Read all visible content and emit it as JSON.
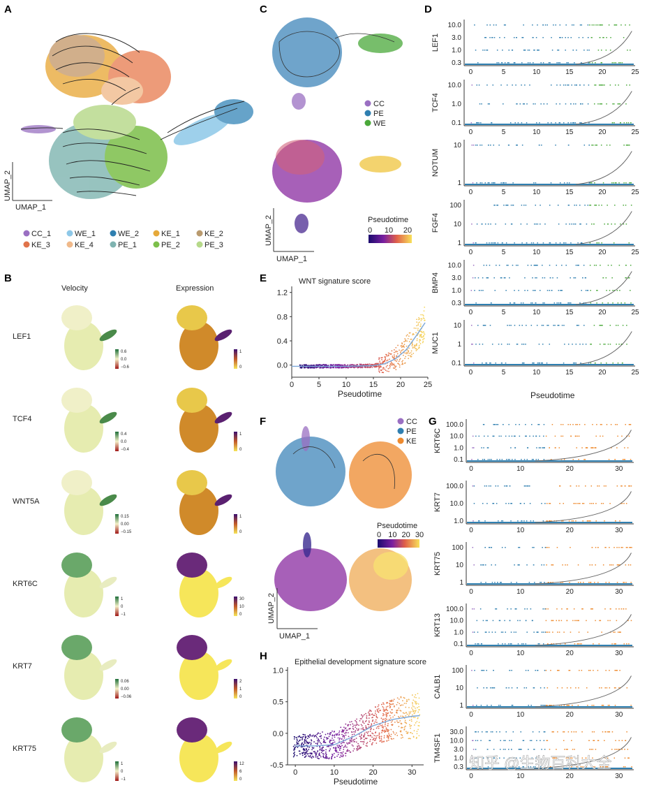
{
  "panels": {
    "A": {
      "letter": "A",
      "xlabel": "UMAP_1",
      "ylabel": "UMAP_2",
      "legend": [
        {
          "label": "CC_1",
          "color": "#9a6fc2"
        },
        {
          "label": "WE_1",
          "color": "#8ec8e8"
        },
        {
          "label": "WE_2",
          "color": "#2f7fb0"
        },
        {
          "label": "KE_1",
          "color": "#e6a93a"
        },
        {
          "label": "KE_2",
          "color": "#b99a6e"
        },
        {
          "label": "KE_3",
          "color": "#e0734a"
        },
        {
          "label": "KE_4",
          "color": "#f0b98a"
        },
        {
          "label": "PE_1",
          "color": "#7fb3b0"
        },
        {
          "label": "PE_2",
          "color": "#7cbf4a"
        },
        {
          "label": "PE_3",
          "color": "#b6d98a"
        }
      ]
    },
    "B": {
      "letter": "B",
      "col1": "Velocity",
      "col2": "Expression",
      "genes": [
        {
          "name": "LEF1",
          "vel": [
            "0.6",
            "0.0",
            "−0.6"
          ],
          "exp": [
            "1",
            "0"
          ]
        },
        {
          "name": "TCF4",
          "vel": [
            "0.4",
            "0.0",
            "−0.4"
          ],
          "exp": [
            "1",
            "0"
          ]
        },
        {
          "name": "WNT5A",
          "vel": [
            "0.15",
            "0.00",
            "−0.15"
          ],
          "exp": [
            "1",
            "0"
          ]
        },
        {
          "name": "KRT6C",
          "vel": [
            "1",
            "0",
            "−1"
          ],
          "exp": [
            "30",
            "10",
            "0"
          ]
        },
        {
          "name": "KRT7",
          "vel": [
            "0.06",
            "0.00",
            "−0.06"
          ],
          "exp": [
            "2",
            "1",
            "0"
          ]
        },
        {
          "name": "KRT75",
          "vel": [
            "1",
            "0",
            "−1"
          ],
          "exp": [
            "12",
            "6",
            "0"
          ]
        }
      ]
    },
    "C": {
      "letter": "C",
      "legend": [
        {
          "label": "CC",
          "color": "#9a6fc2"
        },
        {
          "label": "PE",
          "color": "#2f7fb0"
        },
        {
          "label": "WE",
          "color": "#4aa83a"
        }
      ],
      "pt_title": "Pseudotime",
      "pt_ticks": [
        "0",
        "10",
        "20"
      ],
      "xlabel": "UMAP_1",
      "ylabel": "UMAP_2"
    },
    "D": {
      "letter": "D",
      "xlabel": "Pseudotime",
      "xticks": [
        "0",
        "5",
        "10",
        "15",
        "20",
        "25"
      ]
    },
    "E": {
      "letter": "E",
      "xlabel": "Pseudotime"
    },
    "F": {
      "letter": "F",
      "legend": [
        {
          "label": "CC",
          "color": "#9a6fc2"
        },
        {
          "label": "PE",
          "color": "#2f7fb0"
        },
        {
          "label": "KE",
          "color": "#ee8a2e"
        }
      ],
      "pt_title": "Pseudotime",
      "pt_ticks": [
        "0",
        "10",
        "20",
        "30"
      ],
      "xlabel": "UMAP_1",
      "ylabel": "UMAP_2"
    },
    "G": {
      "letter": "G",
      "xticks": [
        "0",
        "10",
        "20",
        "30"
      ]
    },
    "H": {
      "letter": "H",
      "xlabel": "Pseudotime"
    }
  },
  "watermark": "知乎 @生物百科大全",
  "chart_data": [
    {
      "id": "E",
      "type": "scatter",
      "title": "WNT signature score",
      "xlabel": "Pseudotime",
      "ylabel": "",
      "xlim": [
        0,
        25
      ],
      "ylim": [
        -0.2,
        1.3
      ],
      "xticks": [
        0,
        5,
        10,
        15,
        20,
        25
      ],
      "yticks": [
        0.0,
        0.4,
        0.8,
        1.2
      ],
      "trend": {
        "x": [
          0,
          5,
          10,
          15,
          17,
          19,
          21,
          23,
          24.5
        ],
        "y": [
          -0.02,
          -0.02,
          -0.02,
          -0.01,
          0.02,
          0.1,
          0.25,
          0.5,
          0.7
        ]
      }
    },
    {
      "id": "H",
      "type": "scatter",
      "title": "Epithelial development signature score",
      "xlabel": "Pseudotime",
      "ylabel": "",
      "xlim": [
        -2,
        33
      ],
      "ylim": [
        -0.5,
        1.05
      ],
      "xticks": [
        0,
        10,
        20,
        30
      ],
      "yticks": [
        -0.5,
        0.0,
        0.5,
        1.0
      ],
      "trend": {
        "x": [
          0,
          5,
          10,
          15,
          20,
          25,
          30,
          32
        ],
        "y": [
          -0.2,
          -0.2,
          -0.18,
          -0.05,
          0.12,
          0.22,
          0.27,
          0.28
        ]
      }
    },
    {
      "id": "D",
      "type": "scatter",
      "title": "",
      "xlabel": "Pseudotime",
      "xlim": [
        -1,
        25
      ],
      "xticks": [
        0,
        5,
        10,
        15,
        20,
        25
      ],
      "series": [
        {
          "name": "LEF1",
          "yticks": [
            "10.0",
            "3.0",
            "1.0",
            "0.3"
          ]
        },
        {
          "name": "TCF4",
          "yticks": [
            "10.0",
            "1.0",
            "0.1"
          ]
        },
        {
          "name": "NOTUM",
          "yticks": [
            "10",
            "1"
          ]
        },
        {
          "name": "FGF4",
          "yticks": [
            "100",
            "10",
            "1"
          ]
        },
        {
          "name": "BMP4",
          "yticks": [
            "10.0",
            "3.0",
            "1.0",
            "0.3"
          ]
        },
        {
          "name": "MUC1",
          "yticks": [
            "10",
            "1",
            "0.1"
          ]
        }
      ]
    },
    {
      "id": "G",
      "type": "scatter",
      "title": "",
      "xlabel": "",
      "xlim": [
        -1,
        33
      ],
      "xticks": [
        0,
        10,
        20,
        30
      ],
      "series": [
        {
          "name": "KRT6C",
          "yticks": [
            "100.0",
            "10.0",
            "1.0",
            "0.1"
          ]
        },
        {
          "name": "KRT7",
          "yticks": [
            "100.0",
            "10.0",
            "1.0"
          ]
        },
        {
          "name": "KRT75",
          "yticks": [
            "100",
            "10",
            "1"
          ]
        },
        {
          "name": "KRT13",
          "yticks": [
            "100.0",
            "10.0",
            "1.0",
            "0.1"
          ]
        },
        {
          "name": "CALB1",
          "yticks": [
            "100",
            "10",
            "1"
          ]
        },
        {
          "name": "TM4SF1",
          "yticks": [
            "30.0",
            "10.0",
            "3.0",
            "1.0",
            "0.3"
          ]
        }
      ]
    }
  ]
}
